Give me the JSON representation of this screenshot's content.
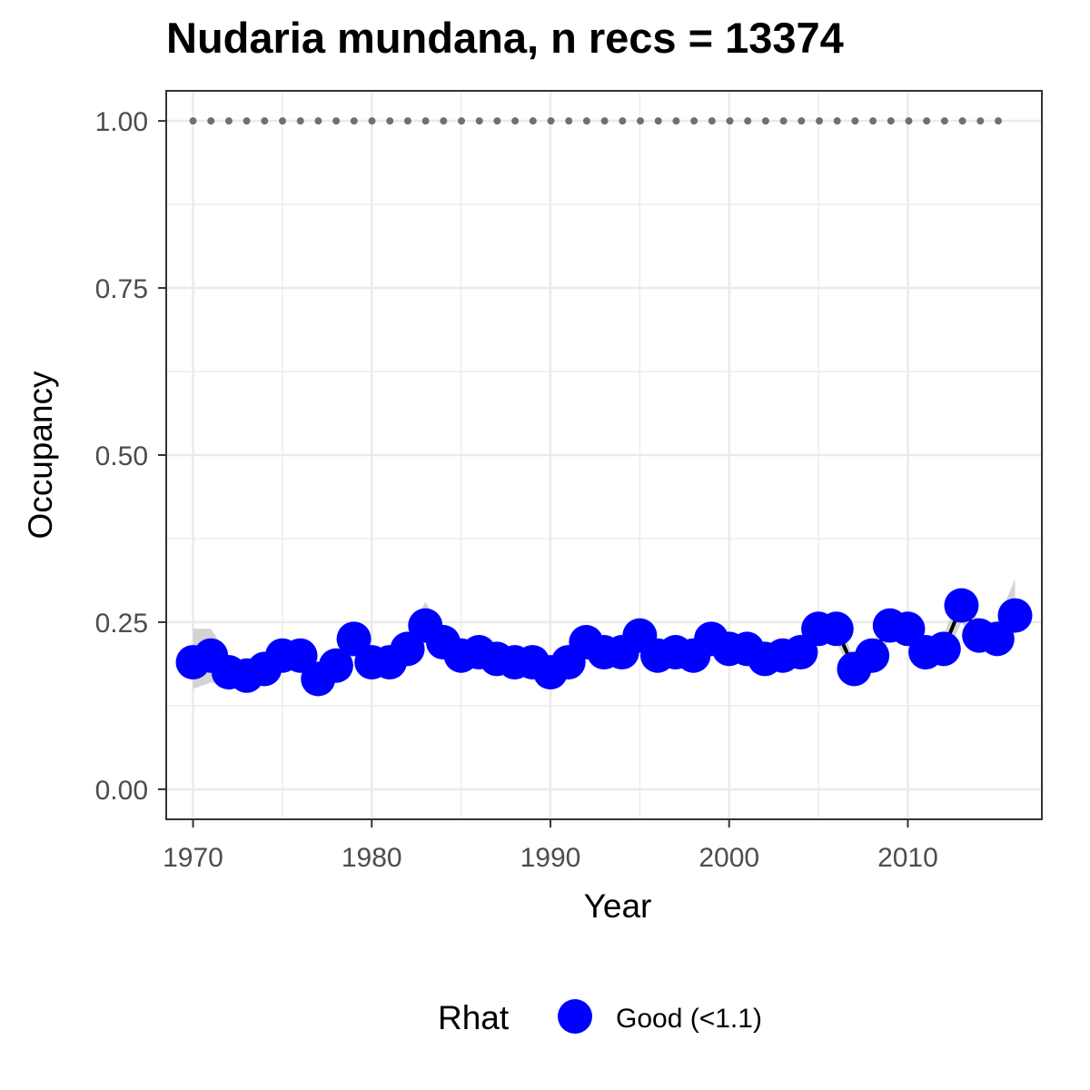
{
  "chart_data": {
    "type": "line",
    "title": "Nudaria mundana, n recs = 13374",
    "xlabel": "Year",
    "ylabel": "Occupancy",
    "xlim": [
      1968.5,
      2017.5
    ],
    "ylim": [
      -0.045,
      1.045
    ],
    "x_ticks": [
      1970,
      1980,
      1990,
      2000,
      2010
    ],
    "y_ticks": [
      0.0,
      0.25,
      0.5,
      0.75,
      1.0
    ],
    "x_tick_labels": [
      "1970",
      "1980",
      "1990",
      "2000",
      "2010"
    ],
    "y_tick_labels": [
      "0.00",
      "0.25",
      "0.50",
      "0.75",
      "1.00"
    ],
    "grid": true,
    "legend": {
      "position": "bottom",
      "title": "Rhat",
      "entries": [
        {
          "label": "Good (<1.1)",
          "color": "#0000ff"
        }
      ]
    },
    "colors": {
      "points": "#0000ff",
      "line": "#000000",
      "ribbon": "#c8c8c8",
      "reference": "#707070"
    },
    "reference_line": {
      "y": 1.0,
      "x_from": 1970,
      "x_to": 2016,
      "style": "dotted"
    },
    "series": [
      {
        "name": "Good (<1.1)",
        "x": [
          1970,
          1971,
          1972,
          1973,
          1974,
          1975,
          1976,
          1977,
          1978,
          1979,
          1980,
          1981,
          1982,
          1983,
          1984,
          1985,
          1986,
          1987,
          1988,
          1989,
          1990,
          1991,
          1992,
          1993,
          1994,
          1995,
          1996,
          1997,
          1998,
          1999,
          2000,
          2001,
          2002,
          2003,
          2004,
          2005,
          2006,
          2007,
          2008,
          2009,
          2010,
          2011,
          2012,
          2013,
          2014,
          2015,
          2016
        ],
        "y": [
          0.19,
          0.2,
          0.175,
          0.17,
          0.18,
          0.2,
          0.2,
          0.165,
          0.185,
          0.225,
          0.19,
          0.19,
          0.21,
          0.245,
          0.22,
          0.2,
          0.205,
          0.195,
          0.19,
          0.19,
          0.175,
          0.19,
          0.22,
          0.205,
          0.205,
          0.23,
          0.2,
          0.205,
          0.2,
          0.225,
          0.21,
          0.21,
          0.195,
          0.2,
          0.205,
          0.24,
          0.24,
          0.18,
          0.2,
          0.245,
          0.24,
          0.205,
          0.21,
          0.275,
          0.23,
          0.225,
          0.26
        ],
        "lower": [
          0.15,
          0.16,
          0.15,
          0.15,
          0.16,
          0.18,
          0.18,
          0.15,
          0.17,
          0.2,
          0.17,
          0.17,
          0.19,
          0.22,
          0.2,
          0.18,
          0.185,
          0.18,
          0.175,
          0.175,
          0.16,
          0.17,
          0.2,
          0.19,
          0.19,
          0.21,
          0.185,
          0.19,
          0.185,
          0.21,
          0.195,
          0.195,
          0.18,
          0.185,
          0.19,
          0.22,
          0.22,
          0.165,
          0.185,
          0.225,
          0.22,
          0.19,
          0.19,
          0.25,
          0.21,
          0.2,
          0.235
        ],
        "upper": [
          0.24,
          0.24,
          0.2,
          0.19,
          0.2,
          0.22,
          0.22,
          0.18,
          0.2,
          0.25,
          0.21,
          0.21,
          0.23,
          0.28,
          0.24,
          0.22,
          0.225,
          0.21,
          0.205,
          0.205,
          0.19,
          0.21,
          0.24,
          0.22,
          0.22,
          0.25,
          0.215,
          0.22,
          0.215,
          0.24,
          0.225,
          0.225,
          0.21,
          0.215,
          0.22,
          0.26,
          0.26,
          0.195,
          0.215,
          0.265,
          0.26,
          0.22,
          0.23,
          0.3,
          0.25,
          0.25,
          0.315
        ]
      }
    ]
  }
}
